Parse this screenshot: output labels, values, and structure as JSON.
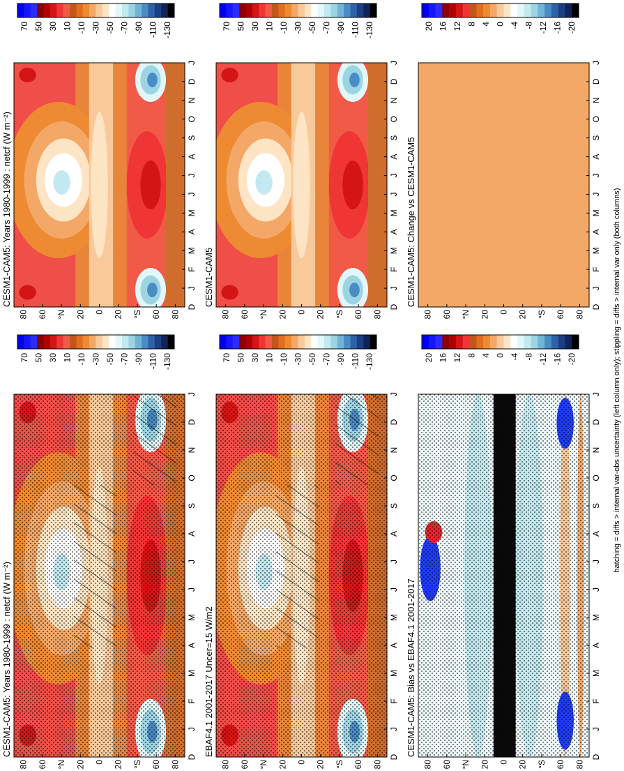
{
  "panels": [
    {
      "title": "CESM1-CAM5: Years 1980-1999 : netcf (W m⁻²)"
    },
    {
      "title": "CESM1-CAM5"
    },
    {
      "title": "CESM1-CAM5: Change vs CESM1-CAM5"
    },
    {
      "title": "CESM1-CAM5: Years 1980-1999 : netcf (W m⁻²)"
    },
    {
      "title": "EBAF4.1 2001-2017 Uncer=15 W/m2"
    },
    {
      "title": "CESM1-CAM5: Bias vs EBAF4.1 2001-2017"
    }
  ],
  "lat_labels": [
    "80",
    "60",
    "°N",
    "20",
    "0",
    "20",
    "°S",
    "60",
    "80"
  ],
  "month_labels": [
    "D",
    "J",
    "F",
    "M",
    "A",
    "M",
    "J",
    "J",
    "A",
    "S",
    "O",
    "N",
    "D",
    "J"
  ],
  "colorbar_labels": {
    "netcf": [
      "70",
      "50",
      "30",
      "10",
      "-10",
      "-30",
      "-50",
      "-70",
      "-90",
      "-110",
      "-130"
    ],
    "diff": [
      "20",
      "16",
      "12",
      "8",
      "4",
      "0",
      "-4",
      "-8",
      "-12",
      "-16",
      "-20"
    ]
  },
  "footnote": "hatching = diffs > internal var-obs uncertainty (left column only); stippling = diffs > internal var only (both columns)"
}
